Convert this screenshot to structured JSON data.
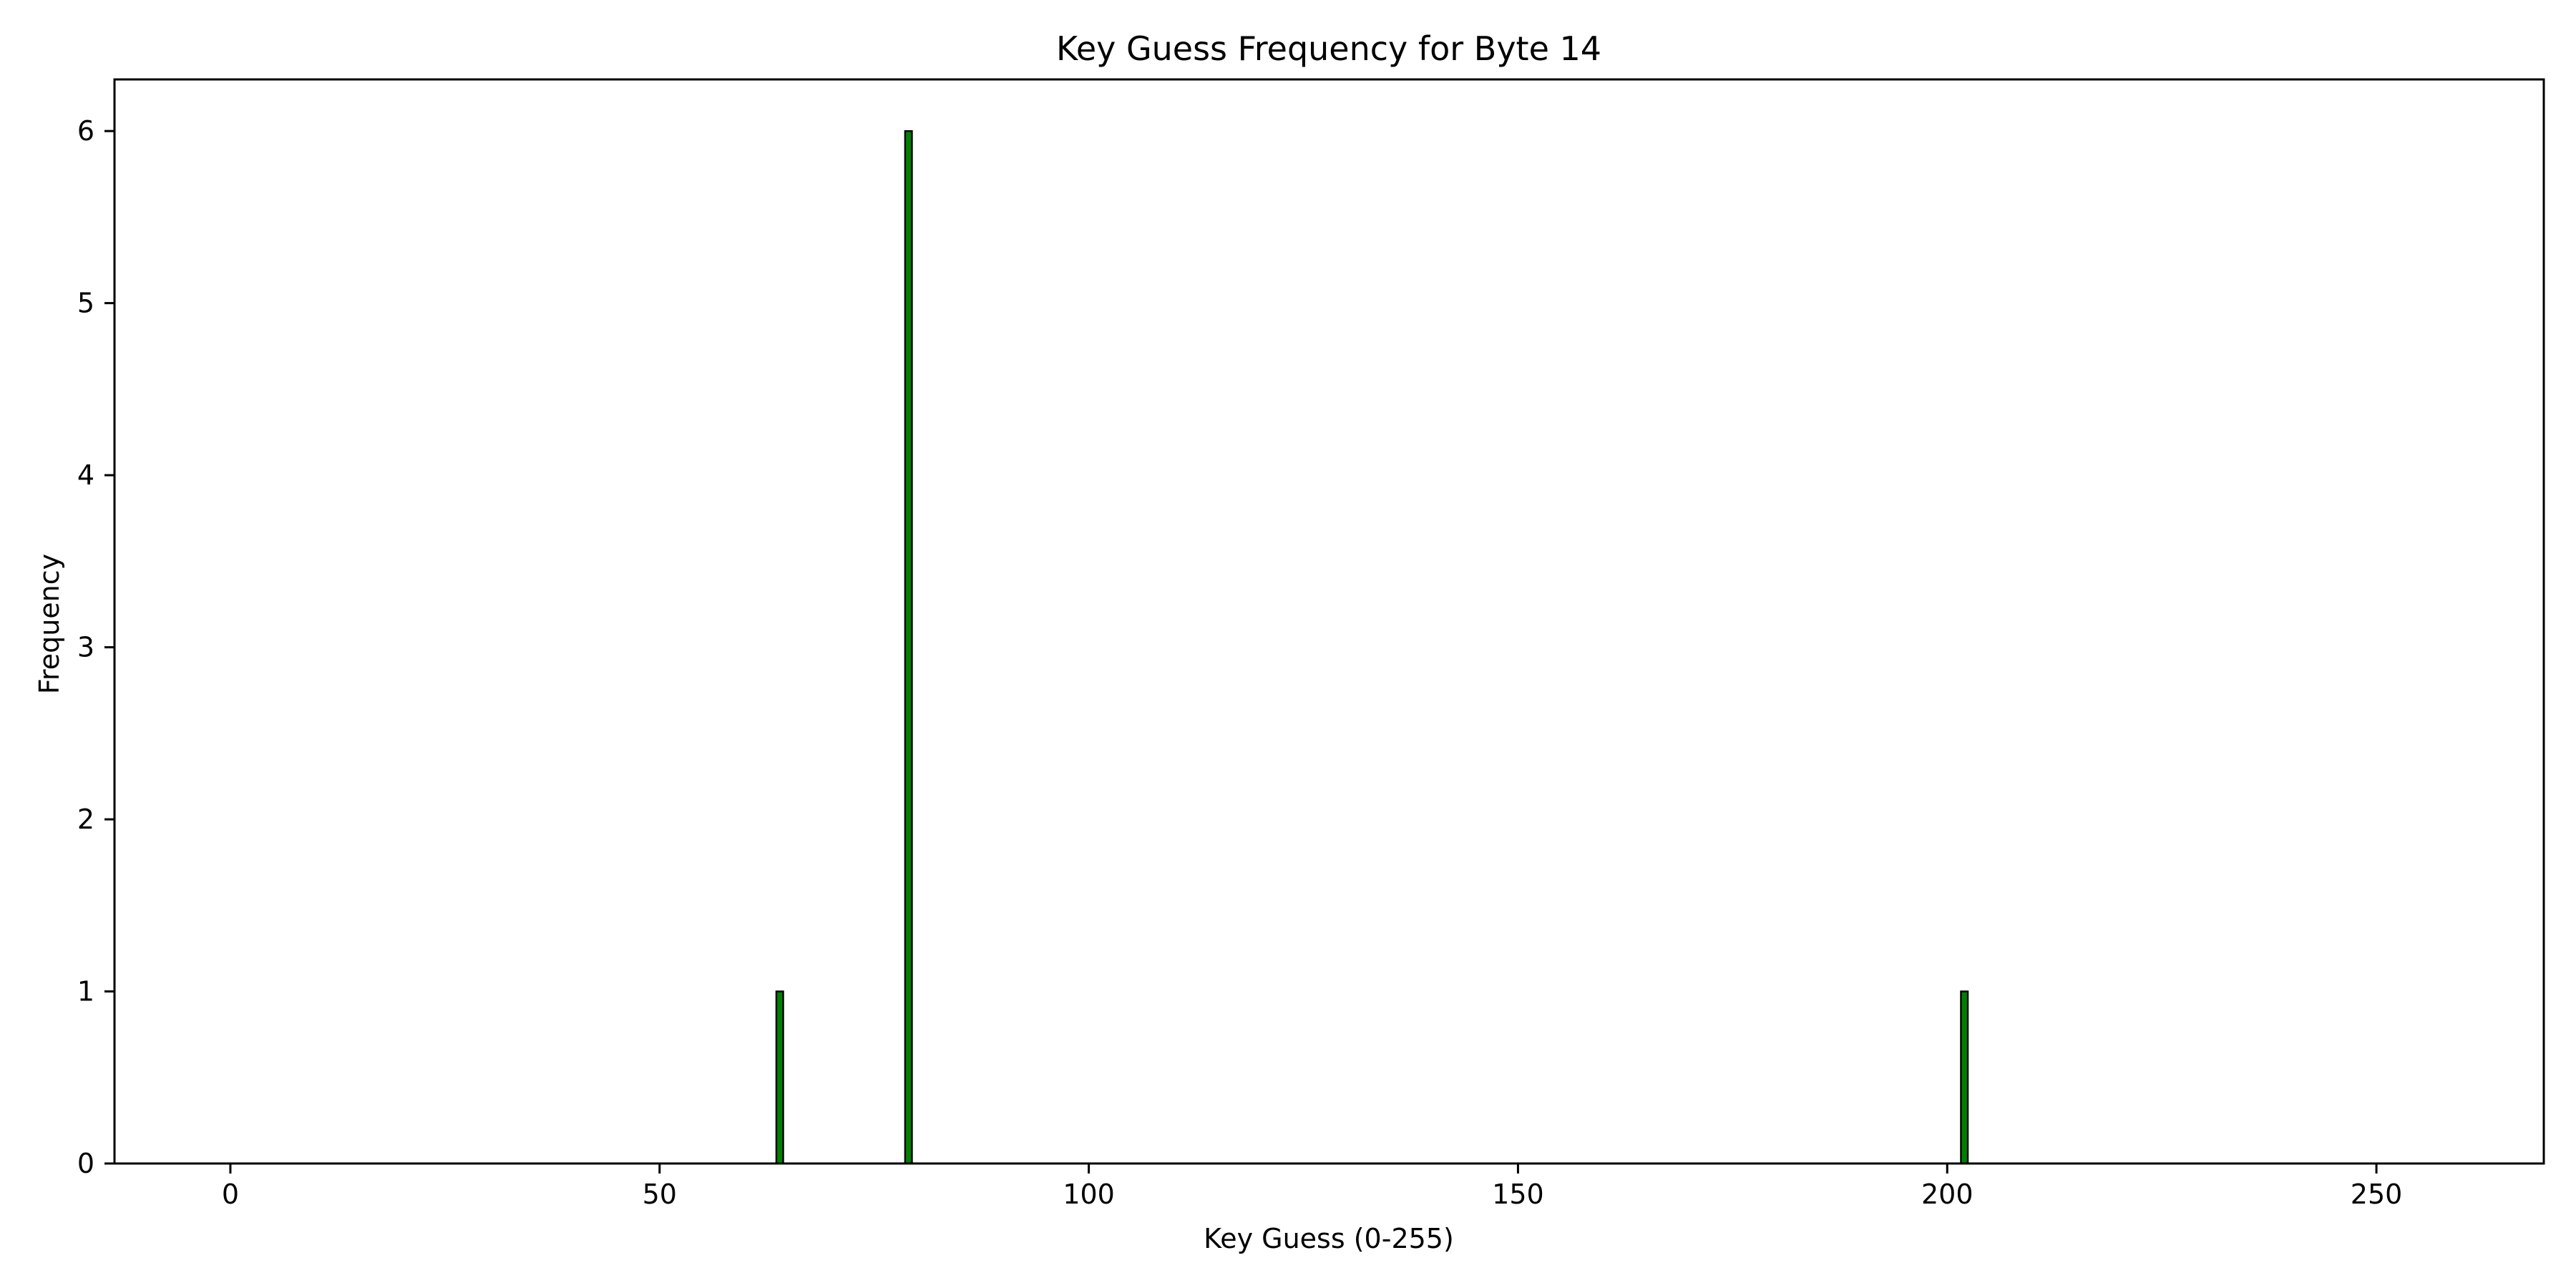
{
  "chart_data": {
    "type": "bar",
    "title": "Key Guess Frequency for Byte 14",
    "xlabel": "Key Guess (0-255)",
    "ylabel": "Frequency",
    "xlim": [
      -13.5,
      269.5
    ],
    "ylim": [
      0,
      6.3
    ],
    "xticks": [
      0,
      50,
      100,
      150,
      200,
      250
    ],
    "yticks": [
      0,
      1,
      2,
      3,
      4,
      5,
      6
    ],
    "grid": false,
    "bar_color": "#008000",
    "edge_color": "#000000",
    "x": [
      0,
      255
    ],
    "nonzero": [
      {
        "x": 64,
        "y": 1
      },
      {
        "x": 79,
        "y": 6
      },
      {
        "x": 202,
        "y": 1
      }
    ]
  }
}
